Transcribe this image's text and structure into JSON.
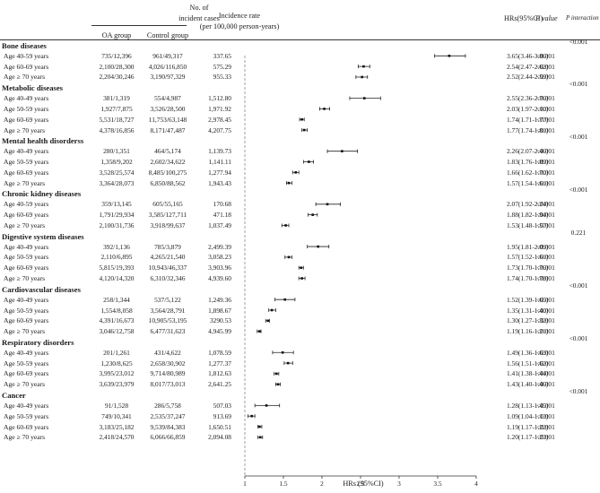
{
  "header": {
    "cases_title_line1": "No. of",
    "cases_title_line2": "incident cases",
    "oa_group": "OA group",
    "control_group": "Control group",
    "rate_line1": "Incidence rate",
    "rate_line2": "(per 100,000 person-years)",
    "hr_col": "HRs(95%CI)",
    "p_value": "P value",
    "p_interaction": "P interaction"
  },
  "chart_data": {
    "type": "forest",
    "xlabel": "HRs (95%CI)",
    "xlim": [
      1,
      4
    ],
    "xticks": [
      "1",
      "1.5",
      "2",
      "2.5",
      "3",
      "3.5",
      "4"
    ],
    "reference_line": 1,
    "groups": [
      {
        "name": "Bone diseases",
        "p_interaction": "<0.001",
        "rows": [
          {
            "age": "Age 40-59 years",
            "oa": "735/12,396",
            "control": "961/49,317",
            "rate": "337.65",
            "hr": 3.65,
            "lo": 3.46,
            "hi": 3.86,
            "hr_text": "3.65(3.46-3.86)",
            "p": "<0.001"
          },
          {
            "age": "Age 60-69 years",
            "oa": "2,100/28,300",
            "control": "4,026/116,850",
            "rate": "575.29",
            "hr": 2.54,
            "lo": 2.47,
            "hi": 2.62,
            "hr_text": "2.54(2.47-2.62)",
            "p": "<0.001"
          },
          {
            "age": "Age ≥ 70 years",
            "oa": "2,204/30,246",
            "control": "3,190/97,329",
            "rate": "955.33",
            "hr": 2.52,
            "lo": 2.44,
            "hi": 2.59,
            "hr_text": "2.52(2.44-2.59)",
            "p": "<0.001"
          }
        ]
      },
      {
        "name": "Metabolic diseases",
        "p_interaction": "<0.001",
        "rows": [
          {
            "age": "Age 40-49 years",
            "oa": "381/1,319",
            "control": "554/4,987",
            "rate": "1,512.80",
            "hr": 2.55,
            "lo": 2.36,
            "hi": 2.76,
            "hr_text": "2.55(2.36-2.76)",
            "p": "<0.001"
          },
          {
            "age": "Age 50-59 years",
            "oa": "1,927/7,875",
            "control": "3,526/28,500",
            "rate": "1,971.92",
            "hr": 2.03,
            "lo": 1.97,
            "hi": 2.1,
            "hr_text": "2.03(1.97-2.10)",
            "p": "<0.001"
          },
          {
            "age": "Age 60-69 years",
            "oa": "5,531/18,727",
            "control": "11,753/63,148",
            "rate": "2,978.45",
            "hr": 1.74,
            "lo": 1.71,
            "hi": 1.77,
            "hr_text": "1.74(1.71-1.77)",
            "p": "<0.001"
          },
          {
            "age": "Age ≥ 70 years",
            "oa": "4,378/16,856",
            "control": "8,171/47,487",
            "rate": "4,207.75",
            "hr": 1.77,
            "lo": 1.74,
            "hi": 1.81,
            "hr_text": "1.77(1.74-1.81)",
            "p": "<0.001"
          }
        ]
      },
      {
        "name": "Mental health disorderss",
        "p_interaction": "<0.001",
        "rows": [
          {
            "age": "Age 40-49 years",
            "oa": "280/1,351",
            "control": "464/5,174",
            "rate": "1,139.73",
            "hr": 2.26,
            "lo": 2.07,
            "hi": 2.46,
            "hr_text": "2.26(2.07-2.46)",
            "p": "<0.001"
          },
          {
            "age": "Age 50-59 years",
            "oa": "1,358/9,202",
            "control": "2,602/34,622",
            "rate": "1,141.11",
            "hr": 1.83,
            "lo": 1.76,
            "hi": 1.89,
            "hr_text": "1.83(1.76-1.89)",
            "p": "<0.001"
          },
          {
            "age": "Age 60-69 years",
            "oa": "3,528/25,574",
            "control": "8,485/100,275",
            "rate": "1,277.94",
            "hr": 1.66,
            "lo": 1.62,
            "hi": 1.7,
            "hr_text": "1.66(1.62-1.70)",
            "p": "<0.001"
          },
          {
            "age": "Age ≥ 70 years",
            "oa": "3,364/28,073",
            "control": "6,850/88,562",
            "rate": "1,943.43",
            "hr": 1.57,
            "lo": 1.54,
            "hi": 1.61,
            "hr_text": "1.57(1.54-1.61)",
            "p": "<0.001"
          }
        ]
      },
      {
        "name": "Chronic kidney diseases",
        "p_interaction": "<0.001",
        "rows": [
          {
            "age": "Age 40-59 years",
            "oa": "359/13,145",
            "control": "605/55,165",
            "rate": "170.68",
            "hr": 2.07,
            "lo": 1.92,
            "hi": 2.24,
            "hr_text": "2.07(1.92-2.24)",
            "p": "<0.001"
          },
          {
            "age": "Age 60-69 years",
            "oa": "1,791/29,934",
            "control": "3,585/127,711",
            "rate": "471.18",
            "hr": 1.88,
            "lo": 1.82,
            "hi": 1.94,
            "hr_text": "1.88(1.82-1.94)",
            "p": "<0.001"
          },
          {
            "age": "Age ≥ 70 years",
            "oa": "2,100/31,736",
            "control": "3,918/99,637",
            "rate": "1,037.49",
            "hr": 1.53,
            "lo": 1.48,
            "hi": 1.57,
            "hr_text": "1.53(1.48-1.57)",
            "p": "<0.001"
          }
        ]
      },
      {
        "name": "Digestive system diseases",
        "p_interaction": "0.221",
        "rows": [
          {
            "age": "Age 40-49 years",
            "oa": "392/1,136",
            "control": "785/3,879",
            "rate": "2,499.39",
            "hr": 1.95,
            "lo": 1.81,
            "hi": 2.09,
            "hr_text": "1.95(1.81-2.09)",
            "p": "<0.001"
          },
          {
            "age": "Age 50-59 years",
            "oa": "2,110/6,895",
            "control": "4,265/21,540",
            "rate": "3,058.23",
            "hr": 1.57,
            "lo": 1.52,
            "hi": 1.61,
            "hr_text": "1.57(1.52-1.61)",
            "p": "<0.001"
          },
          {
            "age": "Age 60-69 years",
            "oa": "5,815/19,393",
            "control": "10,943/46,337",
            "rate": "3,903.96",
            "hr": 1.73,
            "lo": 1.7,
            "hi": 1.76,
            "hr_text": "1.73(1.70-1.76)",
            "p": "<0.001"
          },
          {
            "age": "Age ≥ 70 years",
            "oa": "4,120/14,320",
            "control": "6,310/32,346",
            "rate": "4,939.60",
            "hr": 1.74,
            "lo": 1.7,
            "hi": 1.78,
            "hr_text": "1.74(1.70-1.78)",
            "p": "<0.001"
          }
        ]
      },
      {
        "name": "Cardiovascular diseases",
        "p_interaction": "<0.001",
        "rows": [
          {
            "age": "Age 40-49 years",
            "oa": "258/1,344",
            "control": "537/5,122",
            "rate": "1,249.36",
            "hr": 1.52,
            "lo": 1.39,
            "hi": 1.65,
            "hr_text": "1.52(1.39-1.65)",
            "p": "<0.001"
          },
          {
            "age": "Age 50-59 years",
            "oa": "1,554/8,058",
            "control": "3,564/28,791",
            "rate": "1,898.67",
            "hr": 1.35,
            "lo": 1.31,
            "hi": 1.4,
            "hr_text": "1.35(1.31-1.40)",
            "p": "<0.001"
          },
          {
            "age": "Age 60-69 years",
            "oa": "4,391/16,673",
            "control": "10,905/53,195",
            "rate": "3290.53",
            "hr": 1.3,
            "lo": 1.27,
            "hi": 1.32,
            "hr_text": "1.30(1.27-1.32)",
            "p": "<0.001"
          },
          {
            "age": "Age ≥ 70 years",
            "oa": "3,046/12,758",
            "control": "6,477/31,623",
            "rate": "4,945.99",
            "hr": 1.19,
            "lo": 1.16,
            "hi": 1.21,
            "hr_text": "1.19(1.16-1.21)",
            "p": "<0.001"
          }
        ]
      },
      {
        "name": "Respiratory disorders",
        "p_interaction": "<0.001",
        "rows": [
          {
            "age": "Age 40-49 years",
            "oa": "201/1,261",
            "control": "431/4,622",
            "rate": "1,078.59",
            "hr": 1.49,
            "lo": 1.36,
            "hi": 1.63,
            "hr_text": "1.49(1.36-1.63)",
            "p": "<0.001"
          },
          {
            "age": "Age 50-59 years",
            "oa": "1,230/8,625",
            "control": "2,658/30,902",
            "rate": "1,277.37",
            "hr": 1.56,
            "lo": 1.51,
            "hi": 1.62,
            "hr_text": "1.56(1.51-1.62)",
            "p": "<0.001"
          },
          {
            "age": "Age 60-69 years",
            "oa": "3,995/23,012",
            "control": "9,714/80,989",
            "rate": "1,812.63",
            "hr": 1.41,
            "lo": 1.38,
            "hi": 1.44,
            "hr_text": "1.41(1.38-1.44)",
            "p": "<0.001"
          },
          {
            "age": "Age ≥ 70 years",
            "oa": "3,639/23,979",
            "control": "8,017/73,013",
            "rate": "2,641.25",
            "hr": 1.43,
            "lo": 1.4,
            "hi": 1.46,
            "hr_text": "1.43(1.40-1.46)",
            "p": "<0.001"
          }
        ]
      },
      {
        "name": "Cancer",
        "p_interaction": "<0.001",
        "rows": [
          {
            "age": "Age 40-49 years",
            "oa": "91/1,528",
            "control": "286/5,758",
            "rate": "507.03",
            "hr": 1.28,
            "lo": 1.13,
            "hi": 1.45,
            "hr_text": "1.28(1.13-1.45)",
            "p": "<0.001"
          },
          {
            "age": "Age 50-59 years",
            "oa": "749/10,341",
            "control": "2,535/37,247",
            "rate": "913.69",
            "hr": 1.09,
            "lo": 1.04,
            "hi": 1.13,
            "hr_text": "1.09(1.04-1.13)",
            "p": "<0.001"
          },
          {
            "age": "Age 60-69 years",
            "oa": "3,183/25,182",
            "control": "9,539/84,383",
            "rate": "1,650.51",
            "hr": 1.19,
            "lo": 1.17,
            "hi": 1.22,
            "hr_text": "1.19(1.17-1.22)",
            "p": "<0.001"
          },
          {
            "age": "Age ≥ 70 years",
            "oa": "2,418/24,570",
            "control": "6,066/66,859",
            "rate": "2,094.08",
            "hr": 1.2,
            "lo": 1.17,
            "hi": 1.23,
            "hr_text": "1.20(1.17-1.23)",
            "p": "<0.001"
          }
        ]
      }
    ]
  }
}
